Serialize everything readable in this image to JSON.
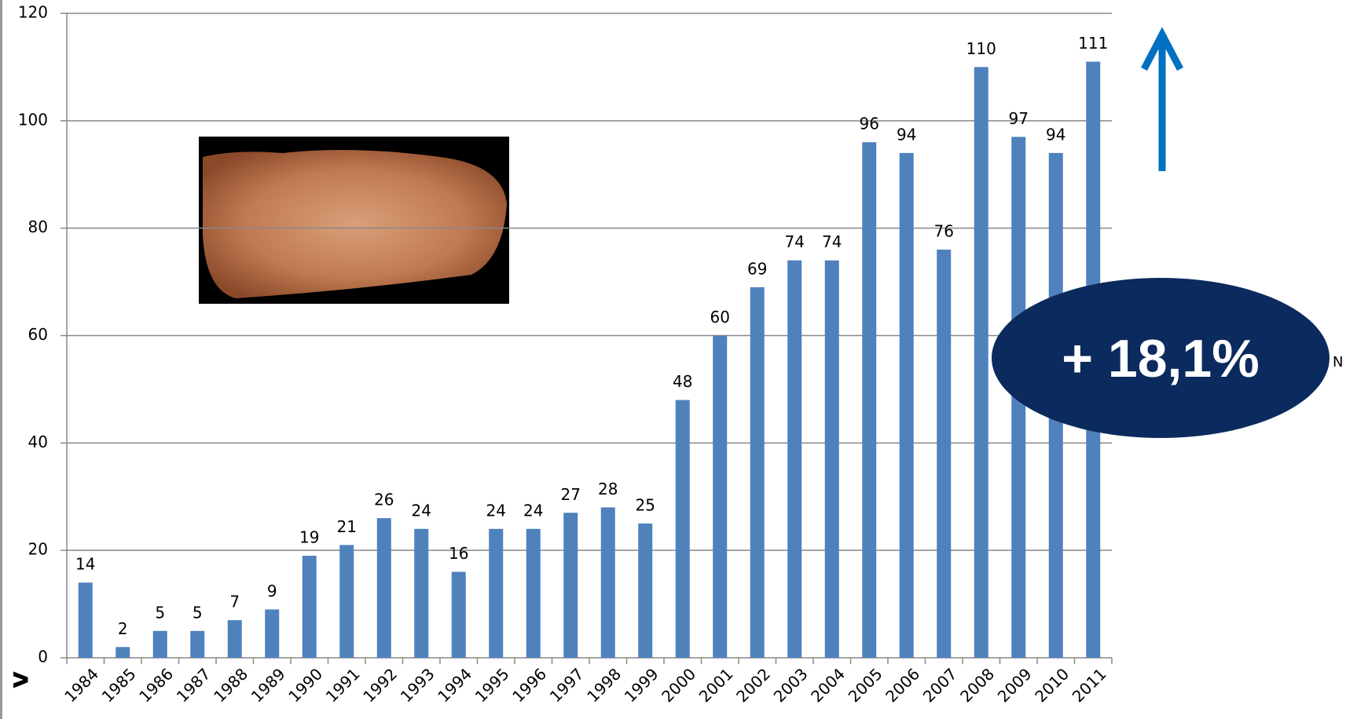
{
  "chart_data": {
    "type": "bar",
    "categories": [
      "1984",
      "1985",
      "1986",
      "1987",
      "1988",
      "1989",
      "1990",
      "1991",
      "1992",
      "1993",
      "1994",
      "1995",
      "1996",
      "1997",
      "1998",
      "1999",
      "2000",
      "2001",
      "2002",
      "2003",
      "2004",
      "2005",
      "2006",
      "2007",
      "2008",
      "2009",
      "2010",
      "2011"
    ],
    "values": [
      14,
      2,
      5,
      5,
      7,
      9,
      19,
      21,
      26,
      24,
      16,
      24,
      24,
      27,
      28,
      25,
      48,
      60,
      69,
      74,
      74,
      96,
      94,
      76,
      110,
      97,
      94,
      111
    ],
    "color": "#4f81bd",
    "ylim": [
      0,
      120
    ],
    "yticks": [
      0,
      20,
      40,
      60,
      80,
      100,
      120
    ],
    "grid": true,
    "annotations": {
      "change": "+ 18,1%",
      "right_mark": "N",
      "left_mark": "v"
    }
  }
}
